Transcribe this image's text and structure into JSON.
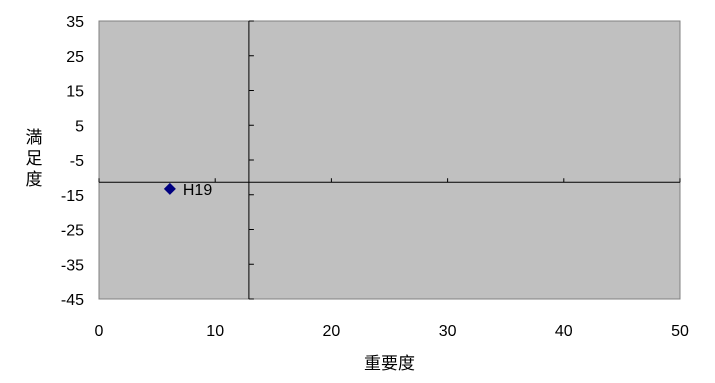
{
  "chart_data": {
    "type": "scatter",
    "xlabel": "重要度",
    "ylabel": "満足度",
    "xlim": [
      0,
      50
    ],
    "ylim": [
      -45,
      35
    ],
    "x_ticks": [
      0,
      10,
      20,
      30,
      40,
      50
    ],
    "y_ticks": [
      35,
      25,
      15,
      5,
      -5,
      -15,
      -25,
      -35,
      -45
    ],
    "x_tick_labels": [
      "0",
      "10",
      "20",
      "30",
      "40",
      "50"
    ],
    "y_tick_labels": [
      "35",
      "25",
      "15",
      "5",
      "-5",
      "-15",
      "-25",
      "-35",
      "-45"
    ],
    "crosshair": {
      "x": 12.9,
      "y": -11.4
    },
    "points": [
      {
        "label": "H19",
        "x": 6.1,
        "y": -13.3
      }
    ],
    "grid": false,
    "legend": "none",
    "colors": {
      "plot_background": "#c0c0c0",
      "marker": "#000080",
      "axis": "#000000"
    }
  }
}
